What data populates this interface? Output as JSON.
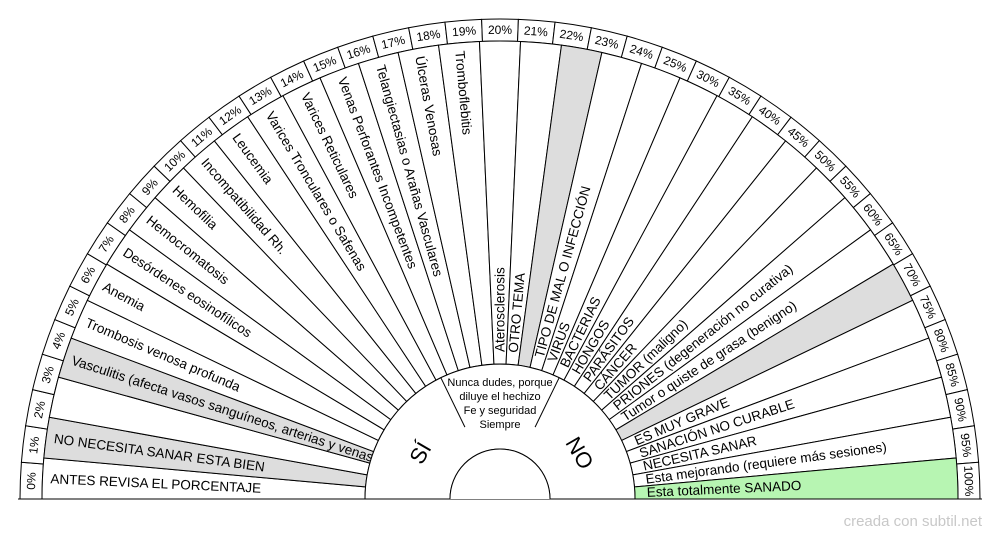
{
  "pendulum_chart": {
    "percentages": [
      "0%",
      "1%",
      "2%",
      "3%",
      "4%",
      "5%",
      "6%",
      "7%",
      "8%",
      "9%",
      "10%",
      "11%",
      "12%",
      "13%",
      "14%",
      "15%",
      "16%",
      "17%",
      "18%",
      "19%",
      "20%",
      "21%",
      "22%",
      "23%",
      "24%",
      "25%",
      "30%",
      "35%",
      "40%",
      "45%",
      "50%",
      "55%",
      "60%",
      "65%",
      "70%",
      "75%",
      "80%",
      "85%",
      "90%",
      "95%",
      "100%"
    ],
    "labels": [
      "ANTES REVISA EL PORCENTAJE",
      "NO NECESITA SANAR ESTA BIEN",
      "",
      "Vasculitis (afecta vasos sanguíneos, arterias y venas)",
      "Trombosis venosa profunda",
      "Anemia",
      "Desórdenes eosinofílicos",
      "Hemocromatosis",
      "Hemofilia",
      "Incompatibilidad Rh.",
      "Leucemia",
      "Varices Tronculares o Safenas",
      "Varices Reticulares",
      "Venas Perforantes Incompetentes",
      "Telangiectasias o Arañas Vasculares",
      "Úlceras Venosas",
      "Tromboflebitis",
      "Aterosclerosis",
      "OTRO TEMA",
      "",
      "TIPO DE MAL O INFECCIÓN",
      "VIRUS",
      "BACTERIAS",
      "HONGOS",
      "PARÁSITOS",
      "CÁNCER",
      "TUMOR (maligno)",
      "PRIONES (degeneración no curativa)",
      "Tumor o quiste de grasa (benigno)",
      "",
      "ES  MUY GRAVE",
      "SANACIÓN NO CURABLE",
      "NECESITA SANAR",
      "Esta mejorando (requiere más sesiones)",
      "Esta totalmente SANADO"
    ],
    "sector_fills": [
      "#ffffff",
      "#dddddd",
      "#ffffff",
      "#dddddd",
      "#ffffff",
      "#ffffff",
      "#ffffff",
      "#ffffff",
      "#ffffff",
      "#ffffff",
      "#ffffff",
      "#ffffff",
      "#ffffff",
      "#ffffff",
      "#ffffff",
      "#ffffff",
      "#ffffff",
      "#ffffff",
      "#ffffff",
      "#dddddd",
      "#ffffff",
      "#ffffff",
      "#ffffff",
      "#ffffff",
      "#ffffff",
      "#ffffff",
      "#ffffff",
      "#ffffff",
      "#ffffff",
      "#dddddd",
      "#ffffff",
      "#ffffff",
      "#ffffff",
      "#ffffff",
      "#b7f5b2"
    ],
    "center_text": [
      "Nunca dudes, porque",
      "diluye el hechizo",
      "Fe y seguridad",
      "Siempre"
    ],
    "yes_label": "SÍ",
    "no_label": "NO"
  },
  "watermark": "creada con subtil.net"
}
